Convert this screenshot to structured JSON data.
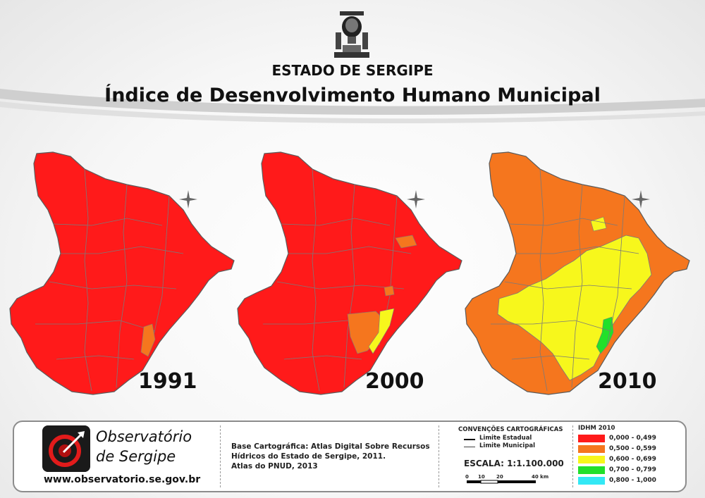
{
  "header": {
    "state_title": "ESTADO DE SERGIPE",
    "main_title": "Índice de Desenvolvimento Humano Municipal"
  },
  "maps": [
    {
      "year": "1991"
    },
    {
      "year": "2000"
    },
    {
      "year": "2010"
    }
  ],
  "footer": {
    "org_name_line1": "Observatório",
    "org_name_line2": "de Sergipe",
    "website": "www.observatorio.se.gov.br",
    "source_lines": [
      "Base Cartográfica: Atlas Digital Sobre Recursos",
      "Hídricos do Estado de Sergipe, 2011.",
      "Atlas do PNUD, 2013"
    ],
    "conventions": {
      "title": "CONVENÇÕES CARTOGRÁFICAS",
      "state_limit": "Limite Estadual",
      "municipal_limit": "Limite Municipal"
    },
    "scale": {
      "label": "ESCALA: 1:1.100.000",
      "ticks": [
        "0",
        "10",
        "20",
        "40 km"
      ]
    },
    "legend": {
      "title": "IDHM 2010",
      "items": [
        {
          "label": "0,000 - 0,499",
          "color": "#ff1a1a"
        },
        {
          "label": "0,500 - 0,599",
          "color": "#f5761e"
        },
        {
          "label": "0,600 - 0,699",
          "color": "#f7f71c"
        },
        {
          "label": "0,700 - 0,799",
          "color": "#22e02a"
        },
        {
          "label": "0,800 - 1,000",
          "color": "#33e8f5"
        }
      ]
    }
  },
  "colors": {
    "red": "#ff1a1a",
    "orange": "#f5761e",
    "yellow": "#f7f71c",
    "green": "#22e02a",
    "border": "#7a7a7a"
  }
}
